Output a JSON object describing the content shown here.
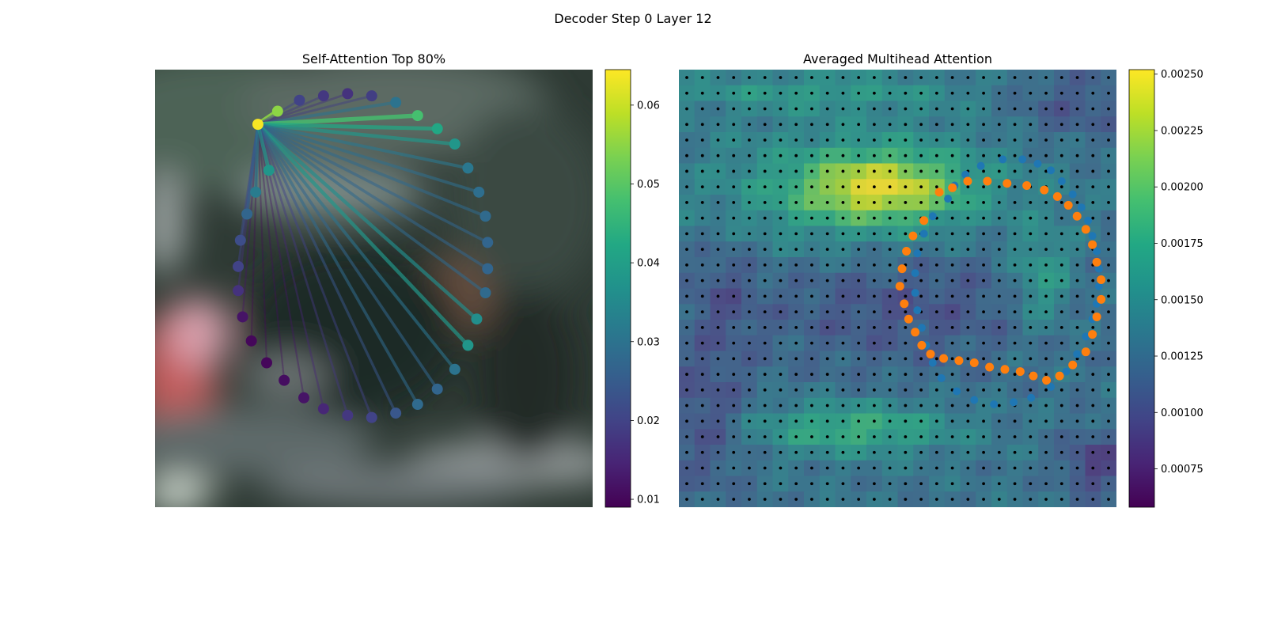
{
  "figure": {
    "title": "Decoder Step 0 Layer 12"
  },
  "chart_data": [
    {
      "type": "network",
      "title": "Self-Attention Top 80%",
      "source_point": [
        -0.53,
        -0.75
      ],
      "points": [
        {
          "x": -0.53,
          "y": -0.75,
          "w": 0.064
        },
        {
          "x": -0.44,
          "y": -0.81,
          "w": 0.055
        },
        {
          "x": -0.34,
          "y": -0.86,
          "w": 0.02
        },
        {
          "x": -0.23,
          "y": -0.88,
          "w": 0.018
        },
        {
          "x": -0.12,
          "y": -0.89,
          "w": 0.017
        },
        {
          "x": -0.01,
          "y": -0.88,
          "w": 0.019
        },
        {
          "x": 0.1,
          "y": -0.85,
          "w": 0.03
        },
        {
          "x": 0.2,
          "y": -0.79,
          "w": 0.048
        },
        {
          "x": 0.29,
          "y": -0.73,
          "w": 0.042
        },
        {
          "x": 0.37,
          "y": -0.66,
          "w": 0.038
        },
        {
          "x": 0.43,
          "y": -0.55,
          "w": 0.031
        },
        {
          "x": 0.48,
          "y": -0.44,
          "w": 0.029
        },
        {
          "x": 0.51,
          "y": -0.33,
          "w": 0.028
        },
        {
          "x": 0.52,
          "y": -0.21,
          "w": 0.027
        },
        {
          "x": 0.52,
          "y": -0.09,
          "w": 0.027
        },
        {
          "x": 0.51,
          "y": 0.02,
          "w": 0.028
        },
        {
          "x": 0.47,
          "y": 0.14,
          "w": 0.036
        },
        {
          "x": 0.43,
          "y": 0.26,
          "w": 0.038
        },
        {
          "x": 0.37,
          "y": 0.37,
          "w": 0.03
        },
        {
          "x": 0.29,
          "y": 0.46,
          "w": 0.027
        },
        {
          "x": 0.2,
          "y": 0.53,
          "w": 0.028
        },
        {
          "x": 0.1,
          "y": 0.57,
          "w": 0.024
        },
        {
          "x": -0.01,
          "y": 0.59,
          "w": 0.02
        },
        {
          "x": -0.12,
          "y": 0.58,
          "w": 0.018
        },
        {
          "x": -0.23,
          "y": 0.55,
          "w": 0.015
        },
        {
          "x": -0.32,
          "y": 0.5,
          "w": 0.012
        },
        {
          "x": -0.41,
          "y": 0.42,
          "w": 0.011
        },
        {
          "x": -0.49,
          "y": 0.34,
          "w": 0.01
        },
        {
          "x": -0.56,
          "y": 0.24,
          "w": 0.01
        },
        {
          "x": -0.6,
          "y": 0.13,
          "w": 0.012
        },
        {
          "x": -0.62,
          "y": 0.01,
          "w": 0.017
        },
        {
          "x": -0.62,
          "y": -0.1,
          "w": 0.02
        },
        {
          "x": -0.61,
          "y": -0.22,
          "w": 0.022
        },
        {
          "x": -0.58,
          "y": -0.34,
          "w": 0.027
        },
        {
          "x": -0.54,
          "y": -0.44,
          "w": 0.032
        },
        {
          "x": -0.48,
          "y": -0.54,
          "w": 0.038
        }
      ],
      "colorbar": {
        "min": 0.009,
        "max": 0.0645,
        "ticks": [
          "0.01",
          "0.02",
          "0.03",
          "0.04",
          "0.05",
          "0.06"
        ],
        "colormap": "viridis"
      }
    },
    {
      "type": "heatmap",
      "title": "Averaged Multihead Attention",
      "grid_size": 28,
      "blue_points": [
        [
          0.23,
          -0.41
        ],
        [
          0.26,
          -0.47
        ],
        [
          0.31,
          -0.52
        ],
        [
          0.38,
          -0.56
        ],
        [
          0.48,
          -0.59
        ],
        [
          0.57,
          -0.59
        ],
        [
          0.64,
          -0.57
        ],
        [
          0.7,
          -0.54
        ],
        [
          0.75,
          -0.49
        ],
        [
          0.8,
          -0.43
        ],
        [
          0.84,
          -0.37
        ],
        [
          0.87,
          -0.31
        ],
        [
          0.89,
          -0.24
        ],
        [
          0.91,
          -0.17
        ],
        [
          0.92,
          -0.09
        ],
        [
          0.92,
          -0.01
        ],
        [
          0.91,
          0.07
        ],
        [
          0.89,
          0.14
        ],
        [
          0.86,
          0.22
        ],
        [
          0.82,
          0.3
        ],
        [
          0.77,
          0.38
        ],
        [
          0.7,
          0.45
        ],
        [
          0.61,
          0.5
        ],
        [
          0.53,
          0.52
        ],
        [
          0.44,
          0.53
        ],
        [
          0.35,
          0.51
        ],
        [
          0.27,
          0.47
        ],
        [
          0.2,
          0.41
        ],
        [
          0.16,
          0.34
        ],
        [
          0.13,
          0.26
        ],
        [
          0.11,
          0.18
        ],
        [
          0.09,
          0.1
        ],
        [
          0.08,
          0.02
        ],
        [
          0.08,
          -0.07
        ],
        [
          0.09,
          -0.16
        ],
        [
          0.12,
          -0.25
        ],
        [
          0.16,
          -0.33
        ]
      ],
      "orange_points": [
        [
          0.19,
          -0.44
        ],
        [
          0.25,
          -0.46
        ],
        [
          0.32,
          -0.49
        ],
        [
          0.41,
          -0.49
        ],
        [
          0.5,
          -0.48
        ],
        [
          0.59,
          -0.47
        ],
        [
          0.67,
          -0.45
        ],
        [
          0.73,
          -0.42
        ],
        [
          0.78,
          -0.38
        ],
        [
          0.82,
          -0.33
        ],
        [
          0.86,
          -0.27
        ],
        [
          0.89,
          -0.2
        ],
        [
          0.91,
          -0.12
        ],
        [
          0.93,
          -0.04
        ],
        [
          0.93,
          0.05
        ],
        [
          0.91,
          0.13
        ],
        [
          0.89,
          0.21
        ],
        [
          0.86,
          0.29
        ],
        [
          0.8,
          0.35
        ],
        [
          0.74,
          0.4
        ],
        [
          0.68,
          0.42
        ],
        [
          0.62,
          0.4
        ],
        [
          0.56,
          0.38
        ],
        [
          0.49,
          0.37
        ],
        [
          0.42,
          0.36
        ],
        [
          0.35,
          0.34
        ],
        [
          0.28,
          0.33
        ],
        [
          0.21,
          0.32
        ],
        [
          0.15,
          0.3
        ],
        [
          0.11,
          0.26
        ],
        [
          0.08,
          0.2
        ],
        [
          0.05,
          0.14
        ],
        [
          0.03,
          0.07
        ],
        [
          0.01,
          -0.01
        ],
        [
          0.02,
          -0.09
        ],
        [
          0.04,
          -0.17
        ],
        [
          0.07,
          -0.24
        ],
        [
          0.12,
          -0.31
        ]
      ],
      "colorbar": {
        "min": 0.00058,
        "max": 0.00252,
        "ticks": [
          "0.00075",
          "0.00100",
          "0.00125",
          "0.00150",
          "0.00175",
          "0.00200",
          "0.00225",
          "0.00250"
        ],
        "colormap": "viridis"
      }
    }
  ]
}
